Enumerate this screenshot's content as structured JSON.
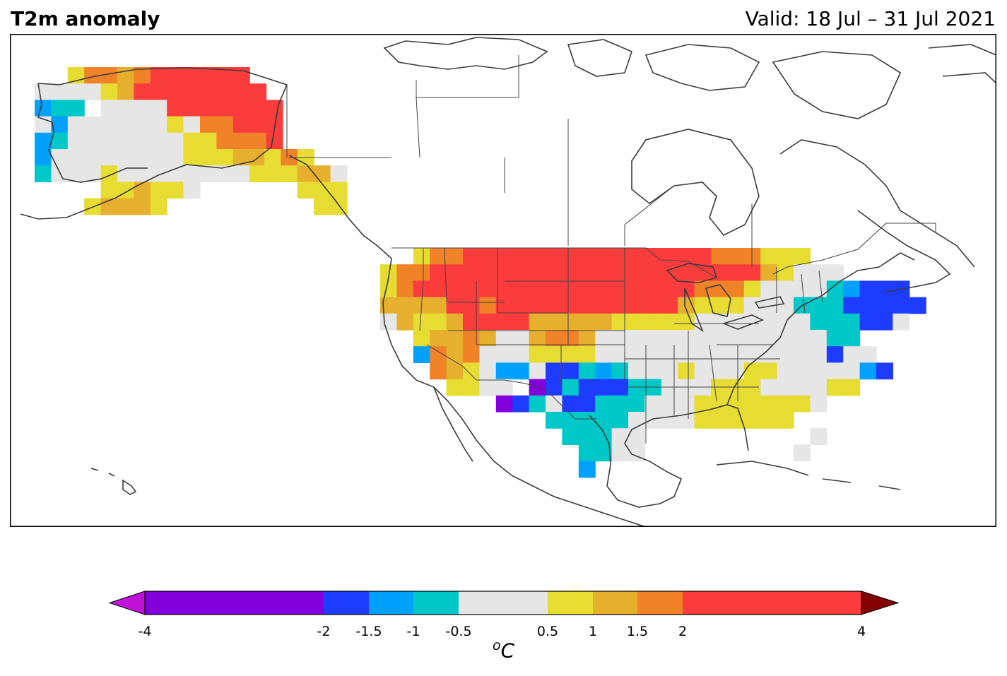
{
  "header": {
    "title": "T2m anomaly",
    "valid": "Valid: 18 Jul – 31 Jul 2021"
  },
  "map": {
    "variable": "2 m temperature anomaly",
    "projection": "Lambert conformal (North America)",
    "coastline_color": "#3a3a3a",
    "border_color": "#444444",
    "anomaly_regions": [
      {
        "region": "Alaska interior / north",
        "class": "2 to 4"
      },
      {
        "region": "Alaska west coast",
        "class": "-1.5 to -1"
      },
      {
        "region": "Alaska southeast panhandle",
        "class": "0.5 to 1.5"
      },
      {
        "region": "US Northern Plains / Northwest",
        "class": "2 to 4"
      },
      {
        "region": "US Great Lakes / Midwest",
        "class": "-0.5 to 0.5"
      },
      {
        "region": "US Northeast / New England",
        "class": "-2 to -1"
      },
      {
        "region": "US Southwest (New Mexico)",
        "class": "-4 to -1.5"
      },
      {
        "region": "Texas",
        "class": "-1 to -0.5"
      },
      {
        "region": "US Southeast / Gulf coast",
        "class": "0.5 to 1"
      },
      {
        "region": "Florida",
        "class": "-0.5 to 1"
      }
    ]
  },
  "colorbar": {
    "unit_symbol": "o",
    "unit": "C",
    "ticks": [
      "-4",
      "-2",
      "-1.5",
      "-1",
      "-0.5",
      "0.5",
      "1",
      "1.5",
      "2",
      "4"
    ],
    "bins": [
      {
        "range": "< -4",
        "color": "#c012d8"
      },
      {
        "range": "-4 to -2",
        "color": "#8200dc"
      },
      {
        "range": "-2 to -1.5",
        "color": "#1e3cff"
      },
      {
        "range": "-1.5 to -1",
        "color": "#00a0ff"
      },
      {
        "range": "-1 to -0.5",
        "color": "#00c8c8"
      },
      {
        "range": "-0.5 to 0.5",
        "color": "#e6e6e6"
      },
      {
        "range": "0.5 to 1",
        "color": "#e6dc32"
      },
      {
        "range": "1 to 1.5",
        "color": "#e6af2d"
      },
      {
        "range": "1.5 to 2",
        "color": "#f08228"
      },
      {
        "range": "2 to 4",
        "color": "#fa3c3c"
      },
      {
        "range": "> 4",
        "color": "#820000"
      }
    ]
  }
}
